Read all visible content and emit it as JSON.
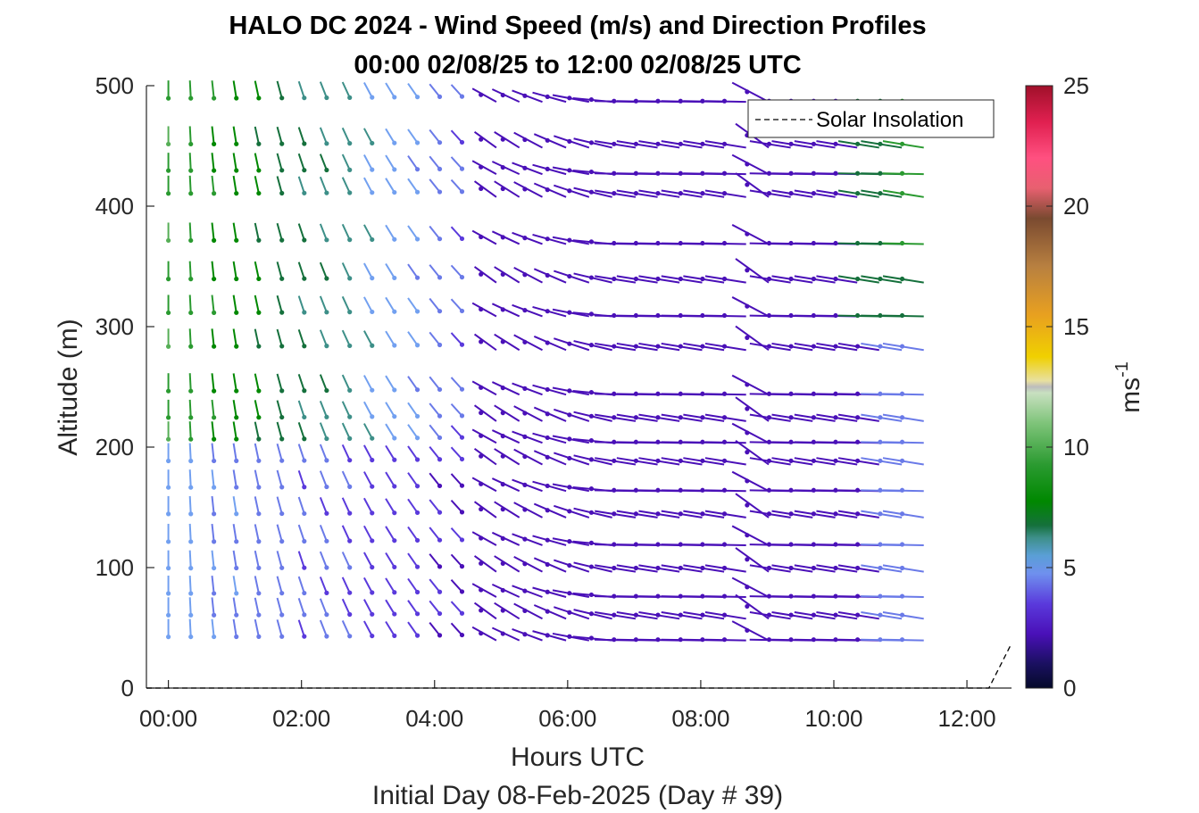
{
  "chart_data": {
    "type": "wind_barb_profile",
    "title": "HALO DC 2024 - Wind Speed (m/s) and Direction Profiles",
    "subtitle": "00:00 02/08/25 to 12:00 02/08/25  UTC",
    "xlabel": "Hours UTC",
    "xlabel2": "Initial Day 08-Feb-2025 (Day # 39)",
    "ylabel": "Altitude (m)",
    "colorbar_label": "ms",
    "colorbar_label_sup": "-1",
    "xlim": [
      -0.33,
      12.67
    ],
    "ylim": [
      0,
      500
    ],
    "xticks": [
      0,
      2,
      4,
      6,
      8,
      10,
      12
    ],
    "xtick_labels": [
      "00:00",
      "02:00",
      "04:00",
      "06:00",
      "08:00",
      "10:00",
      "12:00"
    ],
    "yticks": [
      0,
      100,
      200,
      300,
      400,
      500
    ],
    "ytick_labels": [
      "0",
      "100",
      "200",
      "300",
      "400",
      "500"
    ],
    "cticks": [
      0,
      5,
      10,
      15,
      20,
      25
    ],
    "ctick_labels": [
      "0",
      "5",
      "10",
      "15",
      "20",
      "25"
    ],
    "clim": [
      0,
      25
    ],
    "legend": {
      "label": "Solar Insolation",
      "placement": "top-right"
    },
    "solar_insolation": {
      "x": [
        -0.33,
        12.33,
        12.67
      ],
      "y": [
        0,
        0,
        37
      ]
    },
    "times_hours": [
      0,
      0.33,
      0.67,
      1,
      1.33,
      1.67,
      2,
      2.33,
      2.67,
      3,
      3.33,
      3.67,
      4,
      4.33,
      4.67,
      5,
      5.33,
      5.67,
      6,
      6.33,
      6.67,
      7,
      7.33,
      7.67,
      8,
      8.33,
      8.67,
      9,
      9.33,
      9.67,
      10,
      10.33,
      10.67,
      11
    ],
    "altitudes_m": [
      44,
      62,
      80,
      101,
      123,
      146,
      168,
      190,
      208,
      226,
      248,
      285,
      313,
      341,
      373,
      412,
      431,
      453,
      491
    ]
  },
  "colors": {
    "axis": "#262626",
    "legend_line": "#000000"
  }
}
